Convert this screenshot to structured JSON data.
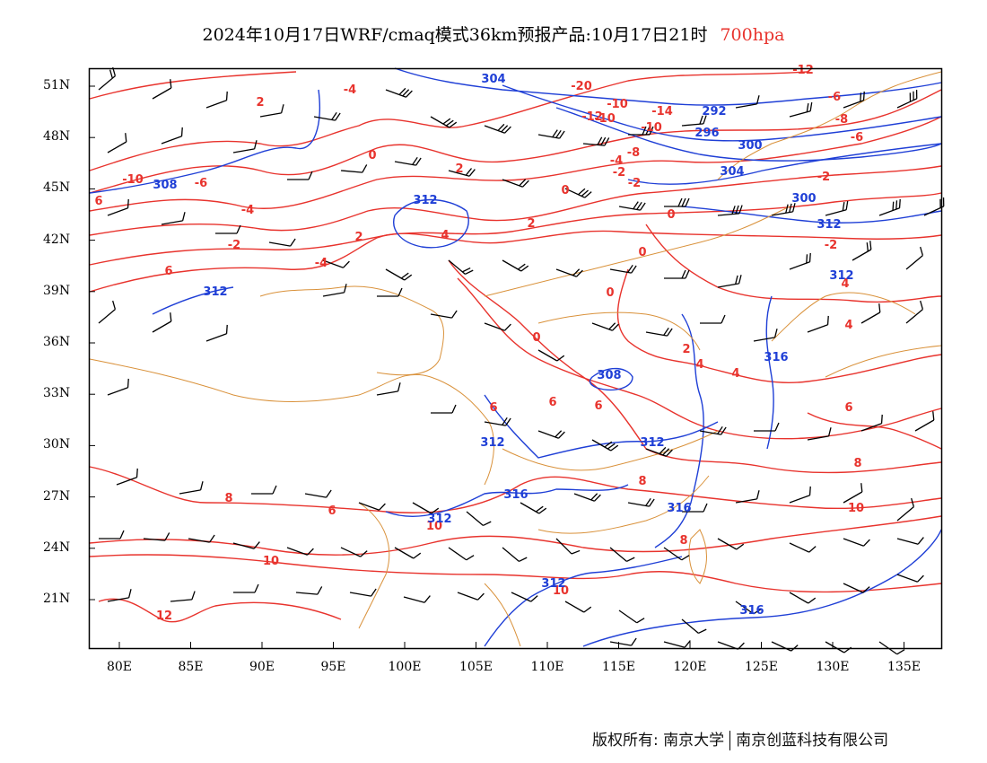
{
  "title": {
    "main": "2024年10月17日WRF/cmaq模式36km预报产品:10月17日21时",
    "level": "700hpa"
  },
  "colors": {
    "temperature": "#e8332d",
    "height": "#1f3fd6",
    "border": "#d9913a",
    "wind": "#000000"
  },
  "axes": {
    "lat_labels": [
      "51N",
      "48N",
      "45N",
      "42N",
      "39N",
      "36N",
      "33N",
      "30N",
      "27N",
      "24N",
      "21N"
    ],
    "lon_labels": [
      "80E",
      "85E",
      "90E",
      "95E",
      "100E",
      "105E",
      "110E",
      "115E",
      "120E",
      "125E",
      "130E",
      "135E"
    ]
  },
  "temp_labels": [
    "-12",
    "-20",
    "-10",
    "-10",
    "-12",
    "-14",
    "-10",
    "-8",
    "-6",
    "-6",
    "-4",
    "-8",
    "-10",
    "-6",
    "-4",
    "-2",
    "-4",
    "-2",
    "-2",
    "0",
    "0",
    "2",
    "2",
    "2",
    "4",
    "-2",
    "-2",
    "-4",
    "2",
    "4",
    "0",
    "0",
    "0",
    "0",
    "2",
    "4",
    "4",
    "6",
    "4",
    "6",
    "6",
    "6",
    "6",
    "8",
    "6",
    "8",
    "8",
    "10",
    "10",
    "10",
    "10",
    "12",
    "6",
    "8"
  ],
  "height_labels": [
    "304",
    "292",
    "296",
    "300",
    "304",
    "308",
    "312",
    "300",
    "312",
    "312",
    "312",
    "308",
    "312",
    "312",
    "312",
    "316",
    "312",
    "316",
    "316",
    "316"
  ],
  "footer": {
    "rights": "版权所有: 南京大学",
    "company": "南京创蓝科技有限公司"
  }
}
